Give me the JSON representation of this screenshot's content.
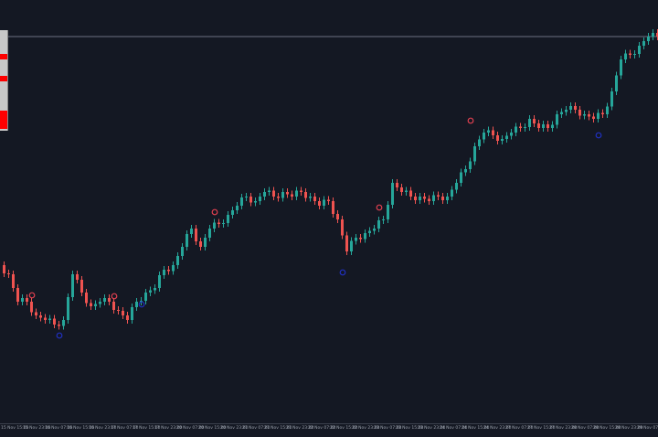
{
  "chart_data": {
    "type": "candlestick",
    "colors": {
      "background": "#141823",
      "bull": "#26a69a",
      "bear": "#ef5350",
      "level_line": "#6b7080",
      "top_marker": "#e04050",
      "bottom_marker": "#2030c0"
    },
    "closes": [
      200,
      170,
      170,
      155,
      150,
      145,
      150,
      200,
      180,
      165,
      170,
      170,
      160,
      150,
      170,
      180,
      185,
      205,
      210,
      230,
      250,
      230,
      250,
      255,
      265,
      275,
      285,
      280,
      290,
      285,
      290,
      285,
      290,
      285,
      275,
      280,
      260,
      225,
      240,
      245,
      250,
      260,
      300,
      290,
      285,
      285,
      280,
      285,
      285,
      300,
      315,
      340,
      355,
      352,
      348,
      355,
      360,
      370,
      360,
      360,
      375,
      380,
      380,
      375,
      370,
      375,
      400,
      435,
      440,
      450,
      460,
      460
    ],
    "level": 460,
    "top_markers": [
      {
        "index": 3,
        "price": 177
      },
      {
        "index": 12,
        "price": 176
      },
      {
        "index": 23,
        "price": 268
      },
      {
        "index": 41,
        "price": 273
      },
      {
        "index": 51,
        "price": 368
      }
    ],
    "bottom_markers": [
      {
        "index": 6,
        "price": 133
      },
      {
        "index": 15,
        "price": 167
      },
      {
        "index": 37,
        "price": 202
      },
      {
        "index": 65,
        "price": 352
      }
    ],
    "x_tick_labels": [
      "15 Nov 15:00",
      "15 Nov 23:00",
      "16 Nov 07:00",
      "16 Nov 15:00",
      "16 Nov 23:00",
      "17 Nov 07:00",
      "17 Nov 15:00",
      "17 Nov 23:00",
      "20 Nov 07:00",
      "20 Nov 15:00",
      "20 Nov 23:00",
      "21 Nov 07:00",
      "21 Nov 15:00",
      "21 Nov 23:00",
      "22 Nov 07:00",
      "22 Nov 15:00",
      "22 Nov 23:00",
      "23 Nov 07:00",
      "23 Nov 15:00",
      "23 Nov 23:00",
      "24 Nov 07:00",
      "24 Nov 15:00",
      "24 Nov 23:00",
      "27 Nov 07:00",
      "27 Nov 15:00",
      "27 Nov 23:00",
      "28 Nov 07:00",
      "28 Nov 15:00",
      "28 Nov 23:00",
      "29 Nov 07:00"
    ],
    "grid": false
  }
}
